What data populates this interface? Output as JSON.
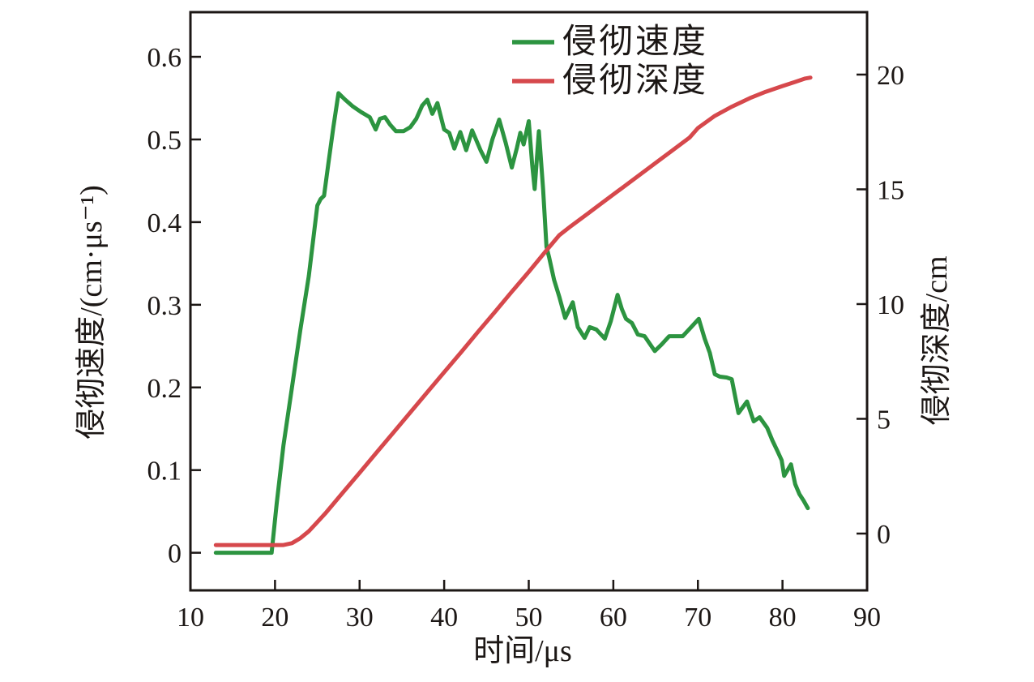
{
  "figure": {
    "background": "#ffffff",
    "frame_color": "#1c1715"
  },
  "chart_data": {
    "type": "line",
    "title": "",
    "xlabel": "时间/μs",
    "ylabel_left": "侵彻速度/(cm·μs⁻¹)",
    "ylabel_right": "侵彻深度/cm",
    "xlim": [
      10,
      90
    ],
    "xticks": [
      "10",
      "20",
      "30",
      "40",
      "50",
      "60",
      "70",
      "80",
      "90"
    ],
    "ylim_left": [
      -0.0455,
      0.654
    ],
    "yticks_left": [
      "0",
      "0.1",
      "0.2",
      "0.3",
      "0.4",
      "0.5",
      "0.6"
    ],
    "ylim_right": [
      -2.475,
      22.72
    ],
    "yticks_right": [
      "0",
      "5",
      "10",
      "15",
      "20"
    ],
    "grid": false,
    "legend": {
      "position": "top-center",
      "entries": [
        {
          "label": "侵彻速度",
          "color": "#2c9440"
        },
        {
          "label": "侵彻深度",
          "color": "#d6484c"
        }
      ]
    },
    "series": [
      {
        "name": "侵彻速度",
        "axis": "left",
        "color": "#2c9440",
        "unit": "cm·μs⁻¹",
        "points": [
          [
            13,
            0
          ],
          [
            14,
            0
          ],
          [
            15,
            0
          ],
          [
            16,
            0
          ],
          [
            17,
            0
          ],
          [
            18,
            0
          ],
          [
            19,
            0
          ],
          [
            19.6,
            0
          ],
          [
            20.2,
            0.06
          ],
          [
            21,
            0.13
          ],
          [
            22,
            0.2
          ],
          [
            23,
            0.27
          ],
          [
            24,
            0.335
          ],
          [
            25,
            0.42
          ],
          [
            25.4,
            0.428
          ],
          [
            25.8,
            0.432
          ],
          [
            26.3,
            0.47
          ],
          [
            26.9,
            0.515
          ],
          [
            27.5,
            0.556
          ],
          [
            28.3,
            0.548
          ],
          [
            29.2,
            0.54
          ],
          [
            30.2,
            0.533
          ],
          [
            31.2,
            0.527
          ],
          [
            31.9,
            0.512
          ],
          [
            32.4,
            0.525
          ],
          [
            33,
            0.527
          ],
          [
            33.6,
            0.518
          ],
          [
            34.3,
            0.51
          ],
          [
            35.2,
            0.51
          ],
          [
            36,
            0.515
          ],
          [
            36.7,
            0.525
          ],
          [
            37.4,
            0.541
          ],
          [
            38,
            0.548
          ],
          [
            38.6,
            0.531
          ],
          [
            39.2,
            0.544
          ],
          [
            40,
            0.512
          ],
          [
            40.6,
            0.508
          ],
          [
            41.2,
            0.489
          ],
          [
            41.9,
            0.509
          ],
          [
            42.6,
            0.487
          ],
          [
            43.3,
            0.511
          ],
          [
            44.3,
            0.487
          ],
          [
            45,
            0.473
          ],
          [
            45.7,
            0.5
          ],
          [
            46.5,
            0.524
          ],
          [
            47.3,
            0.495
          ],
          [
            48,
            0.466
          ],
          [
            48.6,
            0.49
          ],
          [
            49,
            0.508
          ],
          [
            49.4,
            0.494
          ],
          [
            50,
            0.522
          ],
          [
            50.4,
            0.47
          ],
          [
            50.7,
            0.44
          ],
          [
            51.2,
            0.51
          ],
          [
            51.7,
            0.44
          ],
          [
            52.1,
            0.37
          ],
          [
            52.4,
            0.358
          ],
          [
            53,
            0.33
          ],
          [
            53.6,
            0.31
          ],
          [
            54.3,
            0.284
          ],
          [
            55.2,
            0.303
          ],
          [
            55.8,
            0.273
          ],
          [
            56.6,
            0.26
          ],
          [
            57.2,
            0.273
          ],
          [
            58,
            0.27
          ],
          [
            59,
            0.259
          ],
          [
            59.7,
            0.28
          ],
          [
            60.5,
            0.312
          ],
          [
            61,
            0.295
          ],
          [
            61.5,
            0.283
          ],
          [
            62.2,
            0.278
          ],
          [
            62.9,
            0.264
          ],
          [
            63.7,
            0.262
          ],
          [
            64.9,
            0.244
          ],
          [
            65.7,
            0.252
          ],
          [
            66.6,
            0.262
          ],
          [
            67.5,
            0.262
          ],
          [
            68.2,
            0.262
          ],
          [
            69.2,
            0.273
          ],
          [
            70.1,
            0.283
          ],
          [
            70.8,
            0.259
          ],
          [
            71.4,
            0.242
          ],
          [
            72,
            0.216
          ],
          [
            72.6,
            0.213
          ],
          [
            73.4,
            0.212
          ],
          [
            74,
            0.21
          ],
          [
            74.8,
            0.169
          ],
          [
            75.8,
            0.183
          ],
          [
            76.6,
            0.159
          ],
          [
            77.3,
            0.164
          ],
          [
            78.2,
            0.151
          ],
          [
            78.8,
            0.136
          ],
          [
            79.4,
            0.123
          ],
          [
            79.9,
            0.112
          ],
          [
            80.2,
            0.093
          ],
          [
            81,
            0.107
          ],
          [
            81.5,
            0.083
          ],
          [
            82,
            0.071
          ],
          [
            82.5,
            0.063
          ],
          [
            83,
            0.054
          ]
        ]
      },
      {
        "name": "侵彻深度",
        "axis": "right",
        "color": "#d6484c",
        "unit": "cm",
        "points": [
          [
            13,
            -0.5
          ],
          [
            16,
            -0.5
          ],
          [
            19,
            -0.5
          ],
          [
            21,
            -0.5
          ],
          [
            22,
            -0.42
          ],
          [
            23,
            -0.2
          ],
          [
            24,
            0.1
          ],
          [
            25,
            0.5
          ],
          [
            26,
            0.9
          ],
          [
            28,
            1.78
          ],
          [
            30,
            2.65
          ],
          [
            32,
            3.53
          ],
          [
            34,
            4.4
          ],
          [
            36,
            5.28
          ],
          [
            38,
            6.16
          ],
          [
            40,
            7.03
          ],
          [
            42,
            7.9
          ],
          [
            44,
            8.79
          ],
          [
            46,
            9.66
          ],
          [
            48,
            10.54
          ],
          [
            50,
            11.4
          ],
          [
            52,
            12.3
          ],
          [
            53.6,
            13.0
          ],
          [
            55,
            13.4
          ],
          [
            57,
            13.95
          ],
          [
            59,
            14.5
          ],
          [
            61,
            15.05
          ],
          [
            63,
            15.6
          ],
          [
            65,
            16.15
          ],
          [
            67,
            16.7
          ],
          [
            69,
            17.25
          ],
          [
            70,
            17.67
          ],
          [
            72,
            18.2
          ],
          [
            74,
            18.6
          ],
          [
            76.3,
            19.0
          ],
          [
            78,
            19.25
          ],
          [
            80,
            19.5
          ],
          [
            81.5,
            19.68
          ],
          [
            82.7,
            19.83
          ],
          [
            83.3,
            19.87
          ]
        ]
      }
    ]
  }
}
